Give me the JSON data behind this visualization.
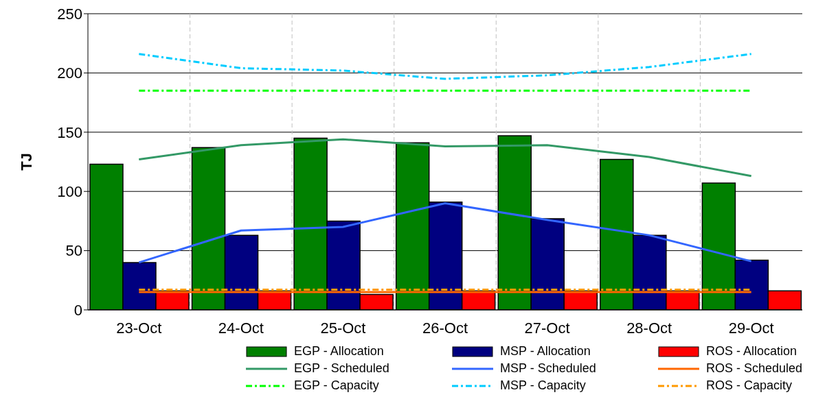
{
  "chart_data": {
    "type": "bar",
    "ylabel": "TJ",
    "categories": [
      "23-Oct",
      "24-Oct",
      "25-Oct",
      "26-Oct",
      "27-Oct",
      "28-Oct",
      "29-Oct"
    ],
    "ylim": [
      0,
      250
    ],
    "yticks": [
      0,
      50,
      100,
      150,
      200,
      250
    ],
    "grid": true,
    "legend": "bottom",
    "marker": "none",
    "series": [
      {
        "name": "EGP - Allocation",
        "color": "#008000",
        "values": [
          123,
          137,
          145,
          141,
          147,
          127,
          107
        ]
      },
      {
        "name": "MSP - Allocation",
        "color": "#000080",
        "values": [
          40,
          63,
          75,
          91,
          77,
          63,
          42
        ]
      },
      {
        "name": "ROS - Allocation",
        "color": "#ff0000",
        "values": [
          16,
          16,
          13,
          16,
          16,
          16,
          16
        ]
      },
      {
        "name": "EGP - Scheduled",
        "type": "line",
        "line_style": "solid",
        "color": "#339966",
        "values": [
          127,
          139,
          144,
          138,
          139,
          129,
          113
        ]
      },
      {
        "name": "MSP - Scheduled",
        "type": "line",
        "line_style": "solid",
        "color": "#3366ff",
        "values": [
          40,
          67,
          70,
          90,
          76,
          63,
          41
        ]
      },
      {
        "name": "ROS - Scheduled",
        "type": "line",
        "line_style": "solid",
        "color": "#ff6600",
        "values": [
          15,
          15,
          15,
          15,
          15,
          15,
          15
        ]
      },
      {
        "name": "EGP - Capacity",
        "type": "line",
        "line_style": "dashed",
        "color": "#00ff00",
        "values": [
          185,
          185,
          185,
          185,
          185,
          185,
          185
        ]
      },
      {
        "name": "MSP - Capacity",
        "type": "line",
        "line_style": "dashed",
        "color": "#00ccff",
        "values": [
          216,
          204,
          202,
          195,
          198,
          205,
          216
        ]
      },
      {
        "name": "ROS - Capacity",
        "type": "line",
        "line_style": "dashed",
        "color": "#ff9900",
        "values": [
          17,
          17,
          17,
          17,
          17,
          17,
          17
        ]
      }
    ]
  }
}
